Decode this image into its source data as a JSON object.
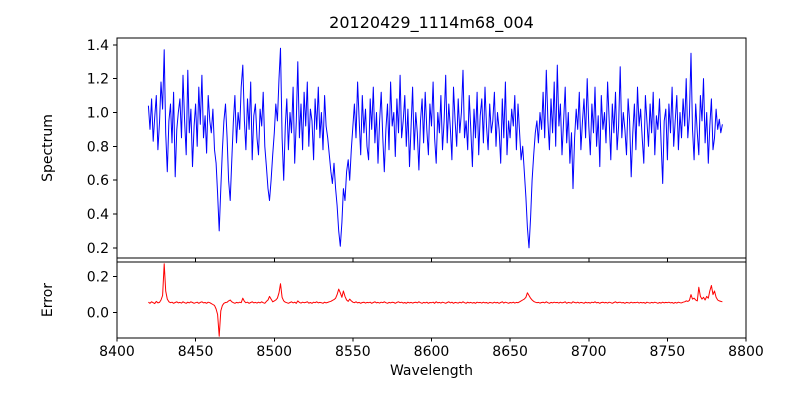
{
  "chart_data": {
    "type": "line",
    "title": "20120429_1114m68_004",
    "xlabel": "Wavelength",
    "xlim": [
      8400,
      8800
    ],
    "x_ticks": [
      8400,
      8450,
      8500,
      8550,
      8600,
      8650,
      8700,
      8750,
      8800
    ],
    "x_start": 8420,
    "x_step": 1,
    "grid": false,
    "legend": "none",
    "panels": [
      {
        "ylabel": "Spectrum",
        "color": "#0000ff",
        "ylim": [
          0.14,
          1.44
        ],
        "y_ticks": [
          0.2,
          0.4,
          0.6,
          0.8,
          1.0,
          1.2,
          1.4
        ],
        "values": [
          1.04,
          0.9,
          1.08,
          0.83,
          0.97,
          1.1,
          0.78,
          0.94,
          1.18,
          1.02,
          1.37,
          0.88,
          0.65,
          0.95,
          1.05,
          0.82,
          1.12,
          0.62,
          0.9,
          1.0,
          1.08,
          0.85,
          1.22,
          0.95,
          0.75,
          1.25,
          0.88,
          1.02,
          0.68,
          0.92,
          1.05,
          0.8,
          1.15,
          0.93,
          1.22,
          0.85,
          0.98,
          0.76,
          1.1,
          0.95,
          0.88,
          1.02,
          0.78,
          0.7,
          0.52,
          0.3,
          0.55,
          0.78,
          0.95,
          1.05,
          0.85,
          0.6,
          0.48,
          0.72,
          0.95,
          1.1,
          0.82,
          1.0,
          0.9,
          1.15,
          1.28,
          0.95,
          0.78,
          1.08,
          0.9,
          1.18,
          0.72,
          0.98,
          1.05,
          0.85,
          0.75,
          1.02,
          0.92,
          1.12,
          0.8,
          0.68,
          0.55,
          0.48,
          0.6,
          0.75,
          0.88,
          1.05,
          0.95,
          1.2,
          1.38,
          0.85,
          0.6,
          0.92,
          1.08,
          0.78,
          1.0,
          0.88,
          1.15,
          0.7,
          0.95,
          1.3,
          0.85,
          1.05,
          0.78,
          1.12,
          0.92,
          1.18,
          0.8,
          1.02,
          0.95,
          0.72,
          1.08,
          0.9,
          1.15,
          0.85,
          1.0,
          0.78,
          1.1,
          0.92,
          0.85,
          0.75,
          0.65,
          0.58,
          0.7,
          0.55,
          0.45,
          0.3,
          0.21,
          0.35,
          0.55,
          0.48,
          0.65,
          0.72,
          0.6,
          0.78,
          0.92,
          1.05,
          0.85,
          1.18,
          0.95,
          0.75,
          1.1,
          0.88,
          1.02,
          0.8,
          0.72,
          1.08,
          0.9,
          1.15,
          0.82,
          1.0,
          0.7,
          0.95,
          1.12,
          0.85,
          0.65,
          0.9,
          1.05,
          0.78,
          1.18,
          0.92,
          1.0,
          0.74,
          1.08,
          0.88,
          1.22,
          0.85,
          0.95,
          1.1,
          0.8,
          1.02,
          0.68,
          0.92,
          1.15,
          0.78,
          1.0,
          0.88,
          0.66,
          0.95,
          1.08,
          0.82,
          1.12,
          0.9,
          0.75,
          1.05,
          0.92,
          1.18,
          0.85,
          0.7,
          1.0,
          0.88,
          1.1,
          0.78,
          0.95,
          1.22,
          0.82,
          1.05,
          0.9,
          0.72,
          1.15,
          0.95,
          0.8,
          1.08,
          0.88,
          1.0,
          1.25,
          0.85,
          0.95,
          0.78,
          1.1,
          0.9,
          0.68,
          1.02,
          0.85,
          1.12,
          0.75,
          0.98,
          1.08,
          0.82,
          1.15,
          0.92,
          0.78,
          1.05,
          0.88,
          0.95,
          1.12,
          0.8,
          1.0,
          0.9,
          0.7,
          1.08,
          0.85,
          1.18,
          0.75,
          0.95,
          0.85,
          1.02,
          0.92,
          1.1,
          0.78,
          1.05,
          0.88,
          0.72,
          0.8,
          0.65,
          0.5,
          0.32,
          0.2,
          0.38,
          0.6,
          0.75,
          0.88,
          0.95,
          0.82,
          1.0,
          0.9,
          1.12,
          0.85,
          1.25,
          0.95,
          0.78,
          1.08,
          0.88,
          1.18,
          0.8,
          1.28,
          0.92,
          1.05,
          0.75,
          0.95,
          1.15,
          0.82,
          1.0,
          0.7,
          0.88,
          0.55,
          0.85,
          1.02,
          0.9,
          1.12,
          0.78,
          0.95,
          1.08,
          0.85,
          1.2,
          0.92,
          0.75,
          1.05,
          0.88,
          1.15,
          0.8,
          0.98,
          0.68,
          1.1,
          0.9,
          1.0,
          0.82,
          1.18,
          0.95,
          0.72,
          1.05,
          0.88,
          1.12,
          0.78,
          0.92,
          1.27,
          0.85,
          1.0,
          0.9,
          0.75,
          1.08,
          0.95,
          0.62,
          0.88,
          1.05,
          0.78,
          1.15,
          0.92,
          1.02,
          0.85,
          0.7,
          1.1,
          0.95,
          0.8,
          1.05,
          0.88,
          1.12,
          0.75,
          0.98,
          0.9,
          1.08,
          0.82,
          0.58,
          0.95,
          1.02,
          0.72,
          1.05,
          0.88,
          1.15,
          0.8,
          0.95,
          1.1,
          0.78,
          1.0,
          0.85,
          1.08,
          0.92,
          1.2,
          0.85,
          0.98,
          1.35,
          0.9,
          0.72,
          1.05,
          0.88,
          0.75,
          1.1,
          0.95,
          1.2,
          0.82,
          1.0,
          0.7,
          0.92,
          1.08,
          0.78,
          0.85,
          1.02,
          0.9,
          0.96,
          0.88,
          0.93
        ]
      },
      {
        "ylabel": "Error",
        "color": "#ff0000",
        "ylim": [
          -0.14,
          0.28
        ],
        "y_ticks": [
          0.0,
          0.2
        ],
        "values": [
          0.058,
          0.052,
          0.06,
          0.055,
          0.05,
          0.062,
          0.054,
          0.057,
          0.07,
          0.095,
          0.27,
          0.12,
          0.075,
          0.06,
          0.055,
          0.058,
          0.052,
          0.056,
          0.06,
          0.054,
          0.057,
          0.053,
          0.06,
          0.055,
          0.052,
          0.058,
          0.054,
          0.06,
          0.056,
          0.052,
          0.055,
          0.058,
          0.052,
          0.057,
          0.06,
          0.054,
          0.056,
          0.052,
          0.058,
          0.055,
          0.05,
          0.045,
          0.04,
          0.02,
          -0.01,
          -0.13,
          0.01,
          0.04,
          0.052,
          0.056,
          0.058,
          0.065,
          0.07,
          0.06,
          0.055,
          0.052,
          0.057,
          0.054,
          0.058,
          0.055,
          0.08,
          0.062,
          0.055,
          0.058,
          0.052,
          0.056,
          0.06,
          0.054,
          0.057,
          0.053,
          0.058,
          0.054,
          0.06,
          0.055,
          0.052,
          0.062,
          0.07,
          0.09,
          0.075,
          0.06,
          0.065,
          0.07,
          0.08,
          0.11,
          0.16,
          0.085,
          0.065,
          0.058,
          0.055,
          0.052,
          0.056,
          0.06,
          0.054,
          0.058,
          0.052,
          0.065,
          0.057,
          0.053,
          0.058,
          0.055,
          0.057,
          0.06,
          0.053,
          0.056,
          0.052,
          0.058,
          0.055,
          0.06,
          0.054,
          0.057,
          0.055,
          0.052,
          0.058,
          0.054,
          0.057,
          0.06,
          0.063,
          0.068,
          0.072,
          0.08,
          0.1,
          0.13,
          0.11,
          0.085,
          0.12,
          0.09,
          0.07,
          0.062,
          0.075,
          0.065,
          0.058,
          0.055,
          0.06,
          0.054,
          0.057,
          0.052,
          0.056,
          0.058,
          0.053,
          0.057,
          0.055,
          0.058,
          0.052,
          0.056,
          0.06,
          0.054,
          0.057,
          0.053,
          0.058,
          0.055,
          0.06,
          0.055,
          0.052,
          0.057,
          0.054,
          0.058,
          0.056,
          0.052,
          0.057,
          0.06,
          0.055,
          0.058,
          0.053,
          0.056,
          0.052,
          0.058,
          0.054,
          0.057,
          0.053,
          0.056,
          0.058,
          0.054,
          0.06,
          0.055,
          0.052,
          0.057,
          0.054,
          0.058,
          0.052,
          0.056,
          0.055,
          0.058,
          0.052,
          0.06,
          0.054,
          0.057,
          0.053,
          0.058,
          0.055,
          0.052,
          0.056,
          0.06,
          0.054,
          0.058,
          0.052,
          0.057,
          0.055,
          0.053,
          0.058,
          0.054,
          0.06,
          0.055,
          0.052,
          0.058,
          0.054,
          0.057,
          0.053,
          0.056,
          0.052,
          0.058,
          0.055,
          0.057,
          0.053,
          0.058,
          0.054,
          0.056,
          0.052,
          0.057,
          0.055,
          0.053,
          0.058,
          0.054,
          0.057,
          0.052,
          0.056,
          0.06,
          0.053,
          0.058,
          0.055,
          0.052,
          0.056,
          0.054,
          0.058,
          0.053,
          0.057,
          0.055,
          0.06,
          0.065,
          0.07,
          0.075,
          0.085,
          0.11,
          0.095,
          0.08,
          0.07,
          0.062,
          0.058,
          0.055,
          0.057,
          0.053,
          0.056,
          0.058,
          0.054,
          0.06,
          0.055,
          0.052,
          0.057,
          0.054,
          0.058,
          0.055,
          0.057,
          0.053,
          0.058,
          0.054,
          0.056,
          0.06,
          0.052,
          0.057,
          0.055,
          0.053,
          0.06,
          0.056,
          0.054,
          0.058,
          0.053,
          0.057,
          0.055,
          0.052,
          0.058,
          0.054,
          0.056,
          0.053,
          0.058,
          0.055,
          0.06,
          0.054,
          0.057,
          0.052,
          0.056,
          0.058,
          0.054,
          0.057,
          0.053,
          0.058,
          0.055,
          0.052,
          0.056,
          0.06,
          0.054,
          0.057,
          0.058,
          0.054,
          0.056,
          0.052,
          0.057,
          0.055,
          0.053,
          0.058,
          0.054,
          0.056,
          0.055,
          0.058,
          0.053,
          0.057,
          0.054,
          0.056,
          0.052,
          0.058,
          0.055,
          0.053,
          0.057,
          0.054,
          0.058,
          0.055,
          0.052,
          0.056,
          0.053,
          0.058,
          0.054,
          0.057,
          0.055,
          0.058,
          0.054,
          0.056,
          0.052,
          0.057,
          0.053,
          0.058,
          0.055,
          0.054,
          0.058,
          0.06,
          0.065,
          0.062,
          0.068,
          0.1,
          0.075,
          0.08,
          0.07,
          0.065,
          0.14,
          0.09,
          0.075,
          0.085,
          0.07,
          0.09,
          0.08,
          0.12,
          0.15,
          0.1,
          0.12,
          0.085,
          0.07,
          0.065,
          0.062,
          0.06
        ]
      }
    ]
  }
}
